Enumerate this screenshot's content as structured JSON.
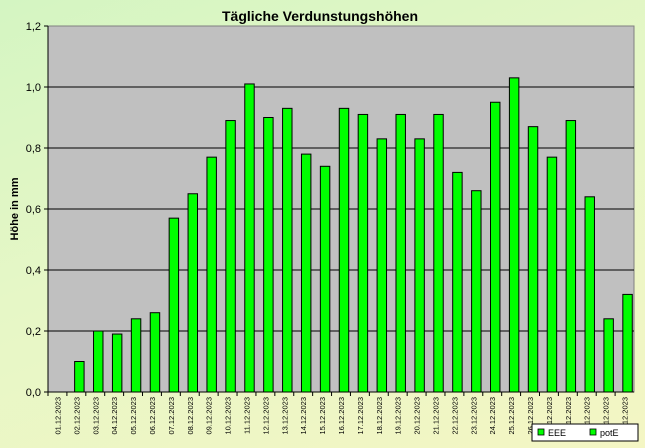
{
  "chart_data": {
    "type": "bar",
    "title": "Tägliche Verdunstungshöhen",
    "ylabel": "Höhe in mm",
    "xlabel": "",
    "ylim": [
      0,
      1.2
    ],
    "yticks": [
      "0,0",
      "0,2",
      "0,4",
      "0,6",
      "0,8",
      "1,0",
      "1,2"
    ],
    "grid": true,
    "legend_position": "bottom-right",
    "plot_background": "#c0c0c0",
    "categories": [
      "01.12.2023",
      "02.12.2023",
      "03.12.2023",
      "04.12.2023",
      "05.12.2023",
      "06.12.2023",
      "07.12.2023",
      "08.12.2023",
      "09.12.2023",
      "10.12.2023",
      "11.12.2023",
      "12.12.2023",
      "13.12.2023",
      "14.12.2023",
      "15.12.2023",
      "16.12.2023",
      "17.12.2023",
      "18.12.2023",
      "19.12.2023",
      "20.12.2023",
      "21.12.2023",
      "22.12.2023",
      "23.12.2023",
      "24.12.2023",
      "25.12.2023",
      "26.12.2023",
      "27.12.2023",
      "28.12.2023",
      "29.12.2023",
      "30.12.2023",
      "31.12.2023"
    ],
    "series": [
      {
        "name": "EEE",
        "color": "#00ff00",
        "values": [
          0,
          0,
          0,
          0,
          0,
          0,
          0,
          0,
          0,
          0,
          0,
          0,
          0,
          0,
          0,
          0,
          0,
          0,
          0,
          0,
          0,
          0,
          0,
          0,
          0,
          0,
          0,
          0,
          0,
          0,
          0
        ]
      },
      {
        "name": "potE",
        "color": "#00ff00",
        "values": [
          0,
          0.1,
          0.2,
          0.19,
          0.24,
          0.26,
          0.57,
          0.65,
          0.77,
          0.89,
          1.01,
          0.9,
          0.93,
          0.78,
          0.74,
          0.93,
          0.91,
          0.83,
          0.91,
          0.83,
          0.91,
          0.72,
          0.66,
          0.95,
          1.03,
          0.87,
          0.77,
          0.89,
          0.64,
          0.24,
          0.32
        ]
      }
    ]
  }
}
